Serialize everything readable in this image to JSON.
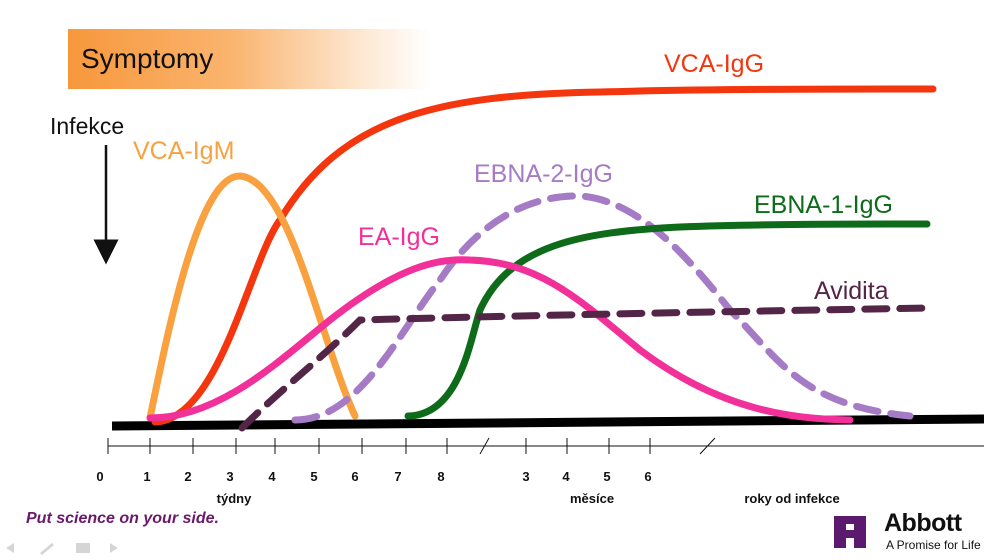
{
  "banner": {
    "label": "Symptomy"
  },
  "infection_label": "Infekce",
  "chart_data": {
    "type": "line",
    "x_axis": {
      "segments": [
        {
          "unit": "týdny",
          "ticks": [
            "0",
            "1",
            "2",
            "3",
            "4",
            "5",
            "6",
            "7",
            "8"
          ]
        },
        {
          "unit": "měsíce",
          "ticks": [
            "3",
            "4",
            "5",
            "6"
          ]
        },
        {
          "unit": "roky od infekce",
          "ticks": []
        }
      ]
    },
    "series": [
      {
        "name": "VCA-IgG",
        "color": "#f4360e",
        "style": "solid"
      },
      {
        "name": "VCA-IgM",
        "color": "#f9a03f",
        "style": "solid"
      },
      {
        "name": "EBNA-2-IgG",
        "color": "#a67bc6",
        "style": "dashed"
      },
      {
        "name": "EBNA-1-IgG",
        "color": "#0d6b1a",
        "style": "solid"
      },
      {
        "name": "EA-IgG",
        "color": "#f2309a",
        "style": "solid"
      },
      {
        "name": "Avidita",
        "color": "#532547",
        "style": "dashed"
      }
    ],
    "grid": false
  },
  "footer": {
    "tagline": "Put science on your side.",
    "brand": "Abbott",
    "brand_sub": "A Promise for Life"
  }
}
